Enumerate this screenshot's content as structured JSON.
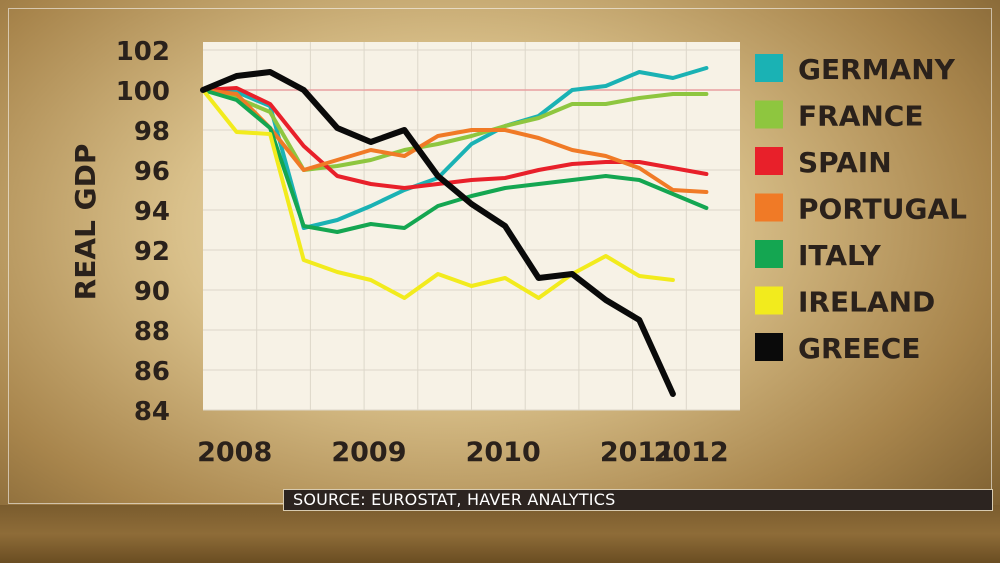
{
  "source": "SOURCE: EUROSTAT, HAVER ANALYTICS",
  "colors": {
    "plot_bg": "#f7f2e6",
    "grid": "#ddd7ca",
    "reference_line": "#e8a0a0",
    "text": "#2a211b"
  },
  "chart_data": {
    "type": "line",
    "title": "",
    "xlabel": "",
    "ylabel": "REAL GDP",
    "ylim": [
      84,
      102
    ],
    "yticks": [
      84,
      86,
      88,
      90,
      92,
      94,
      96,
      98,
      100,
      102
    ],
    "xlim": [
      2008.0,
      2012.0
    ],
    "xticks": [
      {
        "label": "2008",
        "x": 2008.4
      },
      {
        "label": "2009",
        "x": 2009.4
      },
      {
        "label": "2010",
        "x": 2010.4
      },
      {
        "label": "2011",
        "x": 2011.4
      },
      {
        "label": "2012",
        "x": 2011.8
      }
    ],
    "grid": true,
    "reference_line": 100,
    "legend_position": "right",
    "series": [
      {
        "name": "GERMANY",
        "color": "#1ab2b4",
        "x": [
          2008.0,
          2008.25,
          2008.5,
          2008.75,
          2009.0,
          2009.25,
          2009.5,
          2009.75,
          2010.0,
          2010.25,
          2010.5,
          2010.75,
          2011.0,
          2011.25,
          2011.5,
          2011.75
        ],
        "values": [
          100.0,
          99.9,
          99.2,
          93.1,
          93.5,
          94.2,
          95.0,
          95.6,
          97.3,
          98.2,
          98.7,
          100.0,
          100.2,
          100.9,
          100.6,
          101.1
        ]
      },
      {
        "name": "FRANCE",
        "color": "#8ec63f",
        "x": [
          2008.0,
          2008.25,
          2008.5,
          2008.75,
          2009.0,
          2009.25,
          2009.5,
          2009.75,
          2010.0,
          2010.25,
          2010.5,
          2010.75,
          2011.0,
          2011.25,
          2011.5,
          2011.75
        ],
        "values": [
          100.0,
          99.6,
          98.9,
          96.0,
          96.2,
          96.5,
          97.0,
          97.3,
          97.7,
          98.2,
          98.6,
          99.3,
          99.3,
          99.6,
          99.8,
          99.8
        ]
      },
      {
        "name": "SPAIN",
        "color": "#e8202a",
        "x": [
          2008.0,
          2008.25,
          2008.5,
          2008.75,
          2009.0,
          2009.25,
          2009.5,
          2009.75,
          2010.0,
          2010.25,
          2010.5,
          2010.75,
          2011.0,
          2011.25,
          2011.5,
          2011.75
        ],
        "values": [
          100.0,
          100.1,
          99.3,
          97.2,
          95.7,
          95.3,
          95.1,
          95.3,
          95.5,
          95.6,
          96.0,
          96.3,
          96.4,
          96.4,
          96.1,
          95.8
        ]
      },
      {
        "name": "PORTUGAL",
        "color": "#f07a26",
        "x": [
          2008.0,
          2008.25,
          2008.5,
          2008.75,
          2009.0,
          2009.25,
          2009.5,
          2009.75,
          2010.0,
          2010.25,
          2010.5,
          2010.75,
          2011.0,
          2011.25,
          2011.5,
          2011.75
        ],
        "values": [
          100.0,
          99.8,
          98.1,
          96.0,
          96.5,
          97.0,
          96.7,
          97.7,
          98.0,
          98.0,
          97.6,
          97.0,
          96.7,
          96.1,
          95.0,
          94.9
        ]
      },
      {
        "name": "ITALY",
        "color": "#14a651",
        "x": [
          2008.0,
          2008.25,
          2008.5,
          2008.75,
          2009.0,
          2009.25,
          2009.5,
          2009.75,
          2010.0,
          2010.25,
          2010.5,
          2010.75,
          2011.0,
          2011.25,
          2011.5,
          2011.75
        ],
        "values": [
          100.0,
          99.5,
          98.1,
          93.2,
          92.9,
          93.3,
          93.1,
          94.2,
          94.7,
          95.1,
          95.3,
          95.5,
          95.7,
          95.5,
          94.8,
          94.1
        ]
      },
      {
        "name": "IRELAND",
        "color": "#f2eb1d",
        "x": [
          2008.0,
          2008.25,
          2008.5,
          2008.75,
          2009.0,
          2009.25,
          2009.5,
          2009.75,
          2010.0,
          2010.25,
          2010.5,
          2010.75,
          2011.0,
          2011.25,
          2011.5
        ],
        "values": [
          100.0,
          97.9,
          97.8,
          91.5,
          90.9,
          90.5,
          89.6,
          90.8,
          90.2,
          90.6,
          89.6,
          90.8,
          91.7,
          90.7,
          90.5
        ]
      },
      {
        "name": "GREECE",
        "color": "#0a0a0a",
        "x": [
          2008.0,
          2008.25,
          2008.5,
          2008.75,
          2009.0,
          2009.25,
          2009.5,
          2009.75,
          2010.0,
          2010.25,
          2010.5,
          2010.75,
          2011.0,
          2011.25,
          2011.5
        ],
        "values": [
          100.0,
          100.7,
          100.9,
          100.0,
          98.1,
          97.4,
          98.0,
          95.7,
          94.3,
          93.2,
          90.6,
          90.8,
          89.5,
          88.5,
          84.8
        ]
      }
    ]
  }
}
